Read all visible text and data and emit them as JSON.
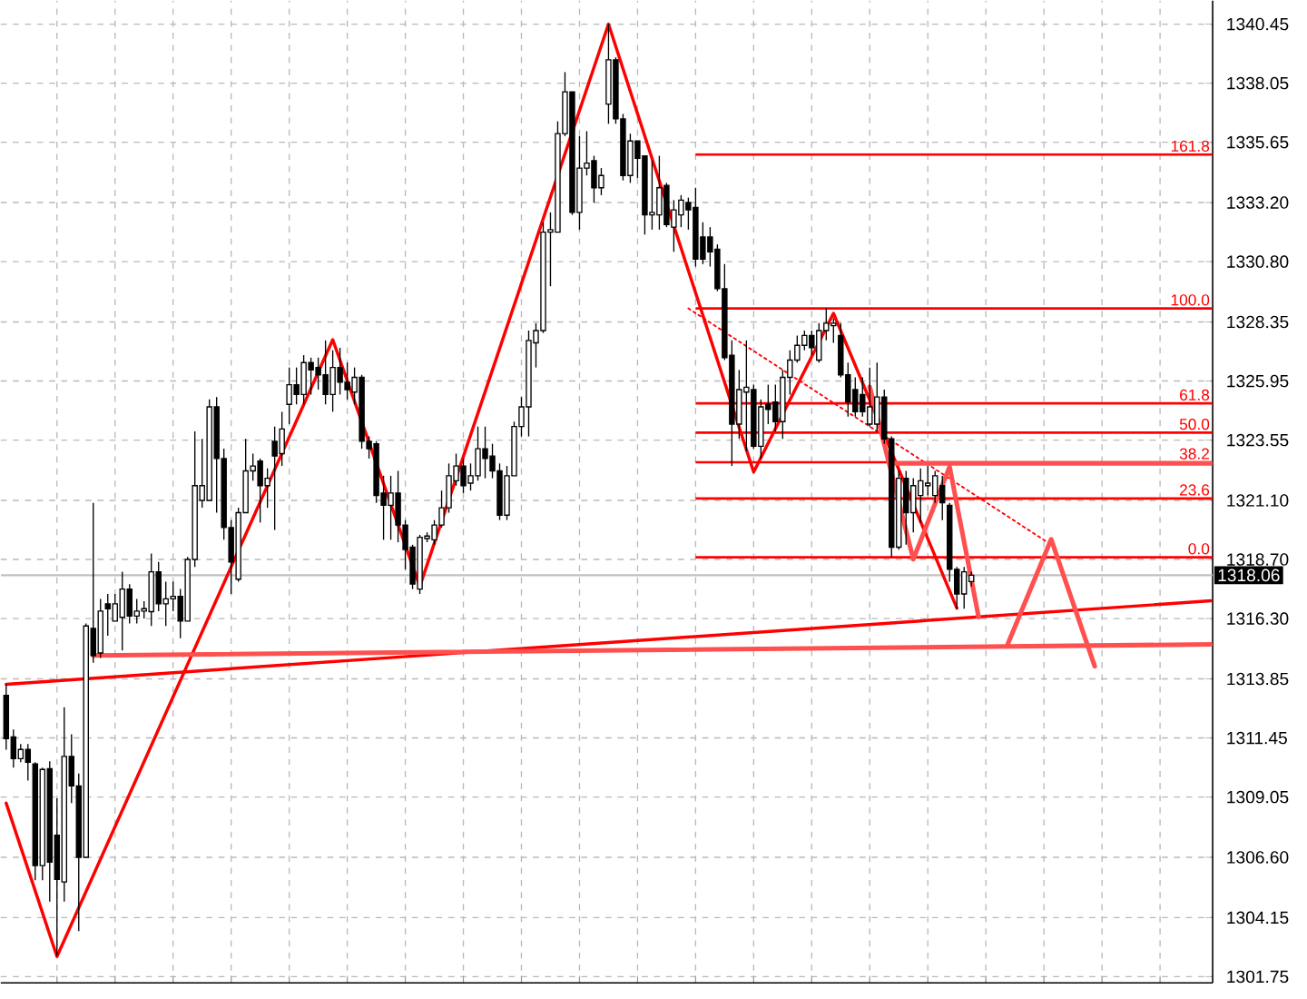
{
  "chart_data": {
    "type": "candlestick",
    "categories": [
      null,
      null,
      null,
      null,
      null,
      null,
      null,
      null,
      null,
      null,
      null,
      null,
      null,
      null,
      null,
      null,
      null,
      null,
      null,
      null,
      null,
      null,
      null,
      null,
      null,
      null,
      null,
      null,
      null,
      null,
      null,
      null,
      null,
      null,
      null,
      null,
      null,
      null,
      null,
      null,
      null,
      null,
      null,
      null,
      null,
      null,
      null,
      null,
      null,
      null,
      null,
      null,
      null,
      null,
      null,
      null,
      null,
      null,
      null,
      null,
      null,
      null,
      null,
      null,
      null,
      null,
      null,
      null,
      null,
      null,
      null,
      null,
      null,
      null,
      null,
      null,
      null,
      null,
      null,
      null,
      null,
      null,
      null,
      null,
      null,
      null,
      null,
      null,
      null,
      null,
      null,
      null,
      null,
      null,
      null,
      null,
      null,
      null,
      null,
      null,
      null,
      null,
      null,
      null,
      null,
      null,
      null,
      null,
      null,
      null,
      null,
      null,
      null,
      null,
      null,
      null,
      null,
      null,
      null,
      null,
      null,
      null,
      null,
      null,
      null,
      null,
      null,
      null,
      null,
      null,
      null,
      null,
      null,
      null,
      null,
      null,
      null,
      null,
      null,
      null,
      null,
      null,
      null,
      null,
      null,
      null,
      null,
      null,
      null,
      null,
      null,
      null,
      null,
      null,
      null,
      null,
      null,
      null,
      null,
      null,
      null,
      null,
      null,
      null,
      null,
      null,
      null
    ],
    "ohlc": [
      [
        1313.18,
        1313.63,
        1310.97,
        1311.42
      ],
      [
        1311.49,
        1311.79,
        1310.24,
        1310.61
      ],
      [
        1310.61,
        1311.2,
        1310.46,
        1310.98
      ],
      [
        1310.98,
        1311.2,
        1309.72,
        1310.46
      ],
      [
        1310.39,
        1310.46,
        1305.67,
        1306.26
      ],
      [
        1306.26,
        1310.24,
        1305.67,
        1310.17
      ],
      [
        1310.2,
        1310.5,
        1304.8,
        1306.4
      ],
      [
        1307.5,
        1309.0,
        1302.6,
        1305.7
      ],
      [
        1305.6,
        1312.7,
        1304.8,
        1310.7
      ],
      [
        1310.7,
        1311.6,
        1308.8,
        1309.5
      ],
      [
        1309.5,
        1310.0,
        1303.6,
        1306.6
      ],
      [
        1306.6,
        1316.1,
        1306.6,
        1316.0
      ],
      [
        1315.9,
        1321.0,
        1314.5,
        1314.8
      ],
      [
        1314.9,
        1317.1,
        1314.7,
        1316.6
      ],
      [
        1316.9,
        1317.3,
        1315.6,
        1316.7
      ],
      [
        1316.2,
        1317.3,
        1316.2,
        1316.9
      ],
      [
        1316.35,
        1318.2,
        1315.0,
        1317.5
      ],
      [
        1317.5,
        1317.7,
        1316.1,
        1316.4
      ],
      [
        1316.4,
        1317.1,
        1316.1,
        1316.6
      ],
      [
        1316.6,
        1317.0,
        1316.3,
        1316.7
      ],
      [
        1316.58,
        1318.94,
        1316.0,
        1318.2
      ],
      [
        1318.2,
        1318.6,
        1316.6,
        1316.9
      ],
      [
        1316.9,
        1317.8,
        1316.0,
        1317.1
      ],
      [
        1317.1,
        1317.8,
        1316.6,
        1317.2
      ],
      [
        1317.2,
        1317.5,
        1315.5,
        1316.2
      ],
      [
        1316.2,
        1318.8,
        1316.2,
        1318.7
      ],
      [
        1318.7,
        1323.9,
        1318.4,
        1321.7
      ],
      [
        1321.1,
        1323.6,
        1320.8,
        1321.7
      ],
      [
        1321.1,
        1325.2,
        1321.1,
        1324.9
      ],
      [
        1324.9,
        1325.3,
        1320.6,
        1322.8
      ],
      [
        1322.8,
        1323.2,
        1319.5,
        1320.0
      ],
      [
        1320.0,
        1320.3,
        1317.3,
        1318.6
      ],
      [
        1317.9,
        1320.8,
        1317.8,
        1320.6
      ],
      [
        1320.6,
        1323.6,
        1320.6,
        1322.3
      ],
      [
        1322.3,
        1323.0,
        1321.9,
        1322.5
      ],
      [
        1322.7,
        1322.8,
        1320.2,
        1321.7
      ],
      [
        1321.7,
        1322.4,
        1320.8,
        1322.0
      ],
      [
        1323.5,
        1324.1,
        1319.9,
        1322.9
      ],
      [
        1323.0,
        1324.7,
        1322.5,
        1324.0
      ],
      [
        1325.0,
        1326.5,
        1324.2,
        1325.8
      ],
      [
        1325.8,
        1326.5,
        1325.0,
        1325.4
      ],
      [
        1325.4,
        1327.0,
        1325.0,
        1326.7
      ],
      [
        1326.7,
        1326.9,
        1325.4,
        1326.4
      ],
      [
        1326.5,
        1326.9,
        1325.6,
        1326.2
      ],
      [
        1326.2,
        1327.6,
        1325.0,
        1325.4
      ],
      [
        1325.4,
        1327.2,
        1324.7,
        1326.5
      ],
      [
        1326.5,
        1327.3,
        1325.4,
        1325.9
      ],
      [
        1325.9,
        1326.7,
        1325.2,
        1325.6
      ],
      [
        1325.5,
        1326.5,
        1325.0,
        1326.1
      ],
      [
        1326.1,
        1326.2,
        1323.2,
        1323.5
      ],
      [
        1323.5,
        1323.7,
        1322.8,
        1323.2
      ],
      [
        1323.4,
        1323.5,
        1321.0,
        1321.3
      ],
      [
        1321.4,
        1322.1,
        1319.5,
        1320.9
      ],
      [
        1320.9,
        1322.1,
        1319.5,
        1321.4
      ],
      [
        1321.4,
        1322.3,
        1319.4,
        1320.1
      ],
      [
        1320.1,
        1320.3,
        1318.3,
        1319.1
      ],
      [
        1319.2,
        1319.3,
        1317.5,
        1317.7
      ],
      [
        1317.5,
        1319.7,
        1317.3,
        1319.6
      ],
      [
        1319.55,
        1319.8,
        1319.4,
        1319.65
      ],
      [
        1319.5,
        1320.3,
        1319.3,
        1320.1
      ],
      [
        1320.1,
        1321.5,
        1320.0,
        1320.8
      ],
      [
        1320.8,
        1322.6,
        1320.6,
        1322.1
      ],
      [
        1321.9,
        1323.0,
        1321.7,
        1322.5
      ],
      [
        1322.5,
        1322.8,
        1321.4,
        1321.7
      ],
      [
        1321.8,
        1322.6,
        1321.5,
        1322.1
      ],
      [
        1322.1,
        1324.1,
        1321.9,
        1323.2
      ],
      [
        1323.2,
        1324.1,
        1322.0,
        1322.8
      ],
      [
        1322.9,
        1323.4,
        1322.0,
        1322.3
      ],
      [
        1322.3,
        1322.6,
        1320.3,
        1320.5
      ],
      [
        1320.5,
        1322.5,
        1320.3,
        1322.1
      ],
      [
        1322.1,
        1324.3,
        1322.1,
        1324.1
      ],
      [
        1324.1,
        1325.3,
        1323.7,
        1324.9
      ],
      [
        1324.9,
        1328.0,
        1323.7,
        1327.6
      ],
      [
        1327.5,
        1328.3,
        1326.5,
        1328.0
      ],
      [
        1328.0,
        1332.4,
        1327.9,
        1332.0
      ],
      [
        1332.0,
        1332.8,
        1329.8,
        1332.1
      ],
      [
        1332.0,
        1336.5,
        1332.0,
        1336.0
      ],
      [
        1336.0,
        1338.5,
        1335.9,
        1337.7
      ],
      [
        1337.7,
        1337.7,
        1332.7,
        1332.8
      ],
      [
        1332.8,
        1335.9,
        1332.1,
        1334.6
      ],
      [
        1334.6,
        1336.1,
        1334.3,
        1334.8
      ],
      [
        1334.9,
        1335.1,
        1333.2,
        1333.8
      ],
      [
        1333.8,
        1334.6,
        1333.5,
        1334.3
      ],
      [
        1337.2,
        1340.45,
        1336.4,
        1339.0
      ],
      [
        1339.0,
        1339.1,
        1336.4,
        1336.6
      ],
      [
        1336.6,
        1336.8,
        1334.1,
        1334.3
      ],
      [
        1334.3,
        1336.0,
        1334.0,
        1335.7
      ],
      [
        1335.7,
        1335.7,
        1334.2,
        1335.0
      ],
      [
        1335.1,
        1335.1,
        1331.9,
        1332.7
      ],
      [
        1332.7,
        1334.9,
        1332.1,
        1332.8
      ],
      [
        1332.7,
        1335.1,
        1332.1,
        1333.8
      ],
      [
        1333.9,
        1334.0,
        1332.2,
        1332.3
      ],
      [
        1332.2,
        1333.3,
        1331.2,
        1332.9
      ],
      [
        1332.7,
        1333.5,
        1332.2,
        1333.3
      ],
      [
        1333.2,
        1333.4,
        1332.1,
        1332.9
      ],
      [
        1333.0,
        1333.8,
        1330.6,
        1330.9
      ],
      [
        1331.8,
        1332.4,
        1330.7,
        1330.9
      ],
      [
        1331.8,
        1332.2,
        1330.6,
        1331.2
      ],
      [
        1331.3,
        1331.5,
        1329.6,
        1329.7
      ],
      [
        1329.7,
        1330.7,
        1326.8,
        1326.9
      ],
      [
        1327.0,
        1327.6,
        1322.5,
        1324.2
      ],
      [
        1324.2,
        1326.4,
        1323.6,
        1325.6
      ],
      [
        1325.5,
        1327.6,
        1323.1,
        1325.7
      ],
      [
        1325.6,
        1325.8,
        1323.2,
        1323.3
      ],
      [
        1323.3,
        1325.2,
        1322.8,
        1324.9
      ],
      [
        1325.0,
        1325.8,
        1324.2,
        1324.8
      ],
      [
        1325.1,
        1325.8,
        1323.9,
        1324.3
      ],
      [
        1324.3,
        1326.4,
        1323.6,
        1326.1
      ],
      [
        1326.1,
        1327.2,
        1325.4,
        1326.8
      ],
      [
        1326.8,
        1327.8,
        1326.7,
        1327.4
      ],
      [
        1327.4,
        1328.0,
        1327.2,
        1327.8
      ],
      [
        1327.8,
        1328.0,
        1327.0,
        1327.3
      ],
      [
        1326.8,
        1328.3,
        1326.7,
        1328.0
      ],
      [
        1328.0,
        1328.9,
        1327.6,
        1328.3
      ],
      [
        1328.2,
        1328.5,
        1327.5,
        1328.3
      ],
      [
        1327.8,
        1328.3,
        1326.1,
        1326.2
      ],
      [
        1326.2,
        1326.7,
        1324.5,
        1325.1
      ],
      [
        1325.6,
        1326.1,
        1324.5,
        1324.7
      ],
      [
        1325.4,
        1326.1,
        1324.5,
        1324.7
      ],
      [
        1324.2,
        1326.5,
        1324.1,
        1324.9
      ],
      [
        1324.2,
        1326.7,
        1323.9,
        1325.3
      ],
      [
        1325.3,
        1325.6,
        1323.4,
        1323.6
      ],
      [
        1323.6,
        1323.7,
        1318.8,
        1319.2
      ],
      [
        1319.2,
        1322.3,
        1319.1,
        1322.0
      ],
      [
        1322.0,
        1322.3,
        1319.3,
        1320.6
      ],
      [
        1320.6,
        1322.0,
        1319.8,
        1321.7
      ],
      [
        1321.3,
        1322.4,
        1320.2,
        1321.9
      ],
      [
        1321.7,
        1322.5,
        1321.3,
        1321.8
      ],
      [
        1321.3,
        1322.3,
        1321.0,
        1322.1
      ],
      [
        1321.7,
        1322.1,
        1320.3,
        1321.0
      ],
      [
        1320.9,
        1321.0,
        1317.8,
        1318.3
      ],
      [
        1318.3,
        1318.4,
        1316.7,
        1317.3
      ],
      [
        1317.3,
        1318.4,
        1316.7,
        1318.2
      ],
      [
        1317.8,
        1318.2,
        1317.6,
        1318.06
      ],
      null,
      null,
      null,
      null,
      null,
      null,
      null,
      null,
      null,
      null,
      null,
      null,
      null,
      null,
      null,
      null,
      null,
      null,
      null,
      null,
      null,
      null,
      null,
      null,
      null,
      null,
      null,
      null,
      null,
      null,
      null,
      null,
      null
    ],
    "series": [
      {
        "type": "line",
        "color": "#ff0000",
        "values": [
          1308.8,
          null,
          null,
          null,
          null,
          null,
          null,
          1302.57,
          null,
          null,
          null,
          null,
          null,
          null,
          null,
          null,
          null,
          null,
          null,
          null,
          null,
          null,
          null,
          null,
          null,
          null,
          null,
          null,
          null,
          null,
          null,
          null,
          null,
          null,
          null,
          null,
          null,
          null,
          null,
          null,
          null,
          null,
          null,
          null,
          null,
          1327.63,
          null,
          null,
          null,
          null,
          null,
          null,
          null,
          null,
          null,
          null,
          null,
          1317.61,
          null,
          null,
          null,
          null,
          null,
          null,
          null,
          null,
          null,
          null,
          null,
          null,
          null,
          null,
          null,
          null,
          null,
          null,
          null,
          null,
          null,
          null,
          null,
          null,
          null,
          1340.45,
          null,
          null,
          null,
          null,
          null,
          null,
          null,
          null,
          null,
          null,
          null,
          null,
          null,
          null,
          null,
          null,
          null,
          null,
          null,
          1322.25,
          null,
          null,
          null,
          null,
          null,
          null,
          null,
          null,
          null,
          null,
          1328.7,
          null,
          null,
          null,
          null,
          null,
          null,
          null,
          null,
          null,
          null,
          null,
          null,
          null,
          null,
          null,
          null,
          1316.72,
          null,
          null,
          null,
          null,
          null,
          null,
          null,
          null,
          null,
          null,
          null,
          null,
          null,
          null,
          null,
          null,
          null,
          null,
          null,
          null,
          null,
          null,
          null,
          null,
          null,
          null,
          null,
          null,
          null,
          null,
          null,
          null,
          null,
          null,
          null
        ]
      },
      {
        "type": "line",
        "color": "#ff0000",
        "values": [
          1313.63,
          null,
          null,
          null,
          null,
          null,
          null,
          null,
          null,
          null,
          null,
          null,
          null,
          null,
          null,
          null,
          null,
          null,
          null,
          null,
          null,
          null,
          null,
          null,
          null,
          null,
          null,
          null,
          null,
          null,
          null,
          null,
          null,
          null,
          null,
          null,
          null,
          null,
          null,
          null,
          null,
          null,
          null,
          null,
          null,
          null,
          null,
          null,
          null,
          null,
          null,
          null,
          null,
          null,
          null,
          null,
          null,
          null,
          null,
          null,
          null,
          null,
          null,
          null,
          null,
          null,
          null,
          null,
          null,
          null,
          null,
          null,
          null,
          null,
          null,
          null,
          null,
          null,
          null,
          null,
          null,
          null,
          null,
          null,
          null,
          null,
          null,
          null,
          null,
          null,
          null,
          null,
          null,
          null,
          null,
          null,
          null,
          null,
          null,
          null,
          null,
          null,
          null,
          null,
          null,
          null,
          null,
          null,
          null,
          null,
          null,
          null,
          null,
          null,
          null,
          null,
          null,
          null,
          null,
          null,
          null,
          null,
          null,
          null,
          null,
          null,
          null,
          null,
          null,
          null,
          null,
          null,
          null,
          null,
          null,
          null,
          null,
          null,
          null,
          null,
          null,
          null,
          null,
          null,
          null,
          null,
          null,
          null,
          null,
          null,
          null,
          null,
          null,
          null,
          null,
          null,
          null,
          null,
          null,
          null,
          null,
          null,
          null,
          null,
          null,
          null,
          1317.02
        ]
      },
      {
        "type": "line",
        "color": "#ff5050",
        "values": [
          null,
          null,
          null,
          null,
          null,
          null,
          null,
          null,
          null,
          null,
          null,
          null,
          1314.8,
          null,
          null,
          null,
          null,
          null,
          null,
          null,
          null,
          null,
          null,
          null,
          null,
          null,
          null,
          null,
          null,
          null,
          null,
          null,
          null,
          null,
          null,
          null,
          null,
          null,
          null,
          null,
          null,
          null,
          null,
          null,
          null,
          null,
          null,
          null,
          null,
          null,
          null,
          null,
          null,
          null,
          null,
          null,
          null,
          null,
          null,
          null,
          null,
          null,
          null,
          null,
          null,
          null,
          null,
          null,
          null,
          null,
          null,
          null,
          null,
          null,
          null,
          null,
          null,
          null,
          null,
          null,
          null,
          null,
          null,
          null,
          null,
          null,
          null,
          null,
          null,
          null,
          null,
          null,
          null,
          null,
          null,
          null,
          null,
          null,
          null,
          null,
          null,
          null,
          null,
          null,
          null,
          null,
          null,
          null,
          null,
          null,
          null,
          null,
          null,
          null,
          null,
          null,
          null,
          null,
          null,
          null,
          null,
          null,
          null,
          null,
          null,
          null,
          null,
          null,
          null,
          null,
          null,
          null,
          null,
          null,
          null,
          null,
          null,
          null,
          null,
          null,
          null,
          null,
          null,
          null,
          null,
          null,
          null,
          null,
          null,
          null,
          null,
          null,
          null,
          null,
          null,
          null,
          null,
          null,
          null,
          null,
          null,
          null,
          null,
          null,
          null,
          null,
          1315.25
        ]
      },
      {
        "type": "line",
        "color": "#ff0000",
        "line_style": "dotted",
        "values": [
          null,
          null,
          null,
          null,
          null,
          null,
          null,
          null,
          null,
          null,
          null,
          null,
          null,
          null,
          null,
          null,
          null,
          null,
          null,
          null,
          null,
          null,
          null,
          null,
          null,
          null,
          null,
          null,
          null,
          null,
          null,
          null,
          null,
          null,
          null,
          null,
          null,
          null,
          null,
          null,
          null,
          null,
          null,
          null,
          null,
          null,
          null,
          null,
          null,
          null,
          null,
          null,
          null,
          null,
          null,
          null,
          null,
          null,
          null,
          null,
          null,
          null,
          null,
          null,
          null,
          null,
          null,
          null,
          null,
          null,
          null,
          null,
          null,
          null,
          null,
          null,
          null,
          null,
          null,
          null,
          null,
          null,
          null,
          null,
          null,
          null,
          null,
          null,
          null,
          null,
          null,
          null,
          null,
          null,
          1328.9,
          null,
          null,
          null,
          null,
          null,
          null,
          null,
          null,
          null,
          null,
          null,
          null,
          null,
          null,
          null,
          null,
          null,
          null,
          null,
          null,
          null,
          null,
          null,
          null,
          null,
          null,
          null,
          null,
          null,
          null,
          null,
          null,
          null,
          null,
          null,
          null,
          null,
          null,
          null,
          null,
          null,
          null,
          null,
          null,
          null,
          null,
          null,
          null,
          null,
          1319.3,
          null,
          null,
          null,
          null,
          null,
          null,
          null,
          null,
          null,
          null,
          null,
          null,
          null,
          null,
          null,
          null,
          null,
          null,
          null,
          null,
          null,
          null
        ]
      },
      {
        "type": "line",
        "color": "#ff5050",
        "values": [
          null,
          null,
          null,
          null,
          null,
          null,
          null,
          null,
          null,
          null,
          null,
          null,
          null,
          null,
          null,
          null,
          null,
          null,
          null,
          null,
          null,
          null,
          null,
          null,
          null,
          null,
          null,
          null,
          null,
          null,
          null,
          null,
          null,
          null,
          null,
          null,
          null,
          null,
          null,
          null,
          null,
          null,
          null,
          null,
          null,
          null,
          null,
          null,
          null,
          null,
          null,
          null,
          null,
          null,
          null,
          null,
          null,
          null,
          null,
          null,
          null,
          null,
          null,
          null,
          null,
          null,
          null,
          null,
          null,
          null,
          null,
          null,
          null,
          null,
          null,
          null,
          null,
          null,
          null,
          null,
          null,
          null,
          null,
          null,
          null,
          null,
          null,
          null,
          null,
          null,
          null,
          null,
          null,
          null,
          null,
          null,
          null,
          null,
          null,
          null,
          null,
          null,
          null,
          null,
          null,
          null,
          null,
          null,
          null,
          null,
          null,
          null,
          null,
          null,
          null,
          null,
          null,
          null,
          null,
          null,
          null,
          null,
          1322.6,
          null,
          null,
          null,
          null,
          null,
          null,
          null,
          null,
          null,
          null,
          null,
          null,
          null,
          null,
          null,
          null,
          null,
          null,
          null,
          null,
          null,
          null,
          null,
          null,
          null,
          null,
          null,
          null,
          null,
          null,
          null,
          null,
          null,
          null,
          null,
          null,
          null,
          null,
          null,
          null,
          null,
          null,
          null,
          1322.6
        ]
      },
      {
        "type": "line",
        "color": "#ff5050",
        "values": [
          null,
          null,
          null,
          null,
          null,
          null,
          null,
          null,
          null,
          null,
          null,
          null,
          null,
          null,
          null,
          null,
          null,
          null,
          null,
          null,
          null,
          null,
          null,
          null,
          null,
          null,
          null,
          null,
          null,
          null,
          null,
          null,
          null,
          null,
          null,
          null,
          null,
          null,
          null,
          null,
          null,
          null,
          null,
          null,
          null,
          null,
          null,
          null,
          null,
          null,
          null,
          null,
          null,
          null,
          null,
          null,
          null,
          null,
          null,
          null,
          null,
          null,
          null,
          null,
          null,
          null,
          null,
          null,
          null,
          null,
          null,
          null,
          null,
          null,
          null,
          null,
          null,
          null,
          null,
          null,
          null,
          null,
          null,
          null,
          null,
          null,
          null,
          null,
          null,
          null,
          null,
          null,
          null,
          null,
          null,
          null,
          null,
          null,
          null,
          null,
          null,
          null,
          null,
          null,
          null,
          null,
          null,
          null,
          null,
          null,
          null,
          null,
          null,
          null,
          null,
          null,
          null,
          null,
          null,
          1325.71,
          null,
          null,
          null,
          null,
          null,
          1318.71,
          null,
          null,
          null,
          null,
          1322.47,
          null,
          null,
          null,
          1316.36,
          null,
          null,
          null,
          null,
          null,
          null,
          null,
          null,
          null,
          null,
          null,
          null,
          null,
          null,
          null,
          null,
          null,
          null,
          null,
          null,
          null,
          null,
          null,
          null,
          null,
          null,
          null,
          null,
          null,
          null,
          null,
          null
        ]
      },
      {
        "type": "line",
        "color": "#ff5050",
        "values": [
          null,
          null,
          null,
          null,
          null,
          null,
          null,
          null,
          null,
          null,
          null,
          null,
          null,
          null,
          null,
          null,
          null,
          null,
          null,
          null,
          null,
          null,
          null,
          null,
          null,
          null,
          null,
          null,
          null,
          null,
          null,
          null,
          null,
          null,
          null,
          null,
          null,
          null,
          null,
          null,
          null,
          null,
          null,
          null,
          null,
          null,
          null,
          null,
          null,
          null,
          null,
          null,
          null,
          null,
          null,
          null,
          null,
          null,
          null,
          null,
          null,
          null,
          null,
          null,
          null,
          null,
          null,
          null,
          null,
          null,
          null,
          null,
          null,
          null,
          null,
          null,
          null,
          null,
          null,
          null,
          null,
          null,
          null,
          null,
          null,
          null,
          null,
          null,
          null,
          null,
          null,
          null,
          null,
          null,
          null,
          null,
          null,
          null,
          null,
          null,
          null,
          null,
          null,
          null,
          null,
          null,
          null,
          null,
          null,
          null,
          null,
          null,
          null,
          null,
          null,
          null,
          null,
          null,
          null,
          null,
          null,
          null,
          null,
          null,
          null,
          null,
          null,
          null,
          null,
          null,
          null,
          null,
          null,
          null,
          null,
          null,
          null,
          null,
          1315.25,
          null,
          null,
          null,
          null,
          null,
          1319.52,
          null,
          null,
          null,
          null,
          null,
          1314.36,
          null,
          null,
          null,
          null,
          null,
          null,
          null,
          null,
          null,
          null,
          null,
          null,
          null,
          null,
          null,
          null
        ]
      }
    ],
    "ylim": [
      1301.5,
      1341.4
    ],
    "yticks": [
      1340.45,
      {
        "value": 1338.05,
        "label": "1338.05"
      },
      {
        "value": 1335.65,
        "label": "1335.65"
      },
      {
        "value": 1333.2,
        "label": "1333.20"
      },
      {
        "value": 1330.8,
        "label": "1330.80"
      },
      {
        "value": 1328.35,
        "label": "1328.35"
      },
      {
        "value": 1325.95,
        "label": "1325.95"
      },
      {
        "value": 1323.55,
        "label": "1323.55"
      },
      {
        "value": 1321.1,
        "label": "1321.10"
      },
      {
        "value": 1318.7,
        "label": "1318.70"
      },
      {
        "value": 1316.3,
        "label": "1316.30"
      },
      {
        "value": 1313.85,
        "label": "1313.85"
      },
      {
        "value": 1311.45,
        "label": "1311.45"
      },
      {
        "value": 1309.05,
        "label": "1309.05"
      },
      {
        "value": 1306.6,
        "label": "1306.60"
      },
      {
        "value": 1304.15,
        "label": "1304.15"
      },
      {
        "value": 1301.75,
        "label": "1301.75"
      }
    ],
    "tick_labels": "y",
    "grid": true,
    "ref_lines": [
      {
        "axis": "y",
        "value": 1335.15,
        "color": "#ff0000"
      },
      {
        "axis": "y",
        "value": 1328.9,
        "color": "#ff0000"
      },
      {
        "axis": "y",
        "value": 1325.04,
        "color": "#ff0000"
      },
      {
        "axis": "y",
        "value": 1323.85,
        "color": "#ff0000"
      },
      {
        "axis": "y",
        "value": 1322.65,
        "color": "#ff0000"
      },
      {
        "axis": "y",
        "value": 1321.18,
        "color": "#ff0000"
      },
      {
        "axis": "y",
        "value": 1318.79,
        "color": "#ff0000"
      },
      {
        "axis": "y",
        "value": 1318.06,
        "label": "1318.06",
        "color": "#c0c0c0"
      }
    ],
    "annotations": [
      {
        "text": "161.8",
        "y": 1335.15
      },
      {
        "text": "100.0",
        "y": 1328.9
      },
      {
        "text": "61.8",
        "y": 1325.04
      },
      {
        "text": "50.0",
        "y": 1323.85
      },
      {
        "text": "38.2",
        "y": 1322.65
      },
      {
        "text": "23.6",
        "y": 1321.18
      },
      {
        "text": "0.0",
        "y": 1318.79
      }
    ]
  }
}
